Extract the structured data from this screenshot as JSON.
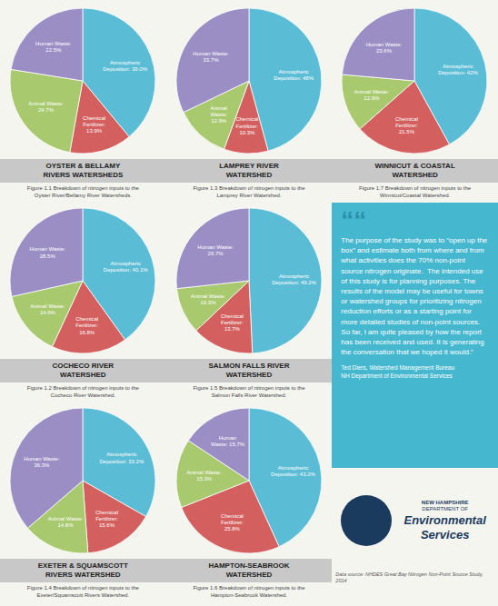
{
  "chart_data": [
    {
      "type": "pie",
      "title": "OYSTER & BELLAMY\nRIVERS WATERSHEDS",
      "annotations": [
        "Figure 1.1 Breakdown of nitrogen inputs to the\nOyster River/Bellamy River Watersheds."
      ],
      "values": [
        39.0,
        13.9,
        24.7,
        22.5
      ],
      "value_labels": [
        "Atmospheric\nDeposition: 39.0%",
        "Chemical\nFertilizer:\n13.9%",
        "Animal Waste:\n24.7%",
        "Human Waste:\n22.5%"
      ],
      "colors": [
        "#5bbcd6",
        "#d45f5f",
        "#a8c96e",
        "#9b8ec4"
      ],
      "data_labels": true
    },
    {
      "type": "pie",
      "title": "LAMPREY RIVER\nWATERSHED",
      "annotations": [
        "Figure 1.3 Breakdown of nitrogen inputs to the\nLamprey River Watershed."
      ],
      "values": [
        48.0,
        10.3,
        12.9,
        33.7
      ],
      "value_labels": [
        "Atmospheric\nDeposition: 48%",
        "Chemical\nFertilizer:\n10.3%",
        "Animal\nWaste:\n12.9%",
        "Human Waste:\n33.7%"
      ],
      "colors": [
        "#5bbcd6",
        "#d45f5f",
        "#a8c96e",
        "#9b8ec4"
      ],
      "data_labels": true
    },
    {
      "type": "pie",
      "title": "WINNICUT & COASTAL\nWATERSHED",
      "annotations": [
        "Figure 1.7 Breakdown of nitrogen inputs to the\nWinnicut/Coastal Watershed."
      ],
      "values": [
        42.0,
        21.5,
        12.9,
        23.6
      ],
      "value_labels": [
        "Atmospheric\nDeposition: 42%",
        "Chemical\nFertilizer:\n21.5%",
        "Animal Waste:\n12.9%",
        "Human Waste:\n23.6%"
      ],
      "colors": [
        "#5bbcd6",
        "#d45f5f",
        "#a8c96e",
        "#9b8ec4"
      ],
      "data_labels": true
    },
    {
      "type": "pie",
      "title": "COCHECO RIVER\nWATERSHED",
      "annotations": [
        "Figure 1.2 Breakdown of nitrogen inputs to the\nCocheco River Watershed."
      ],
      "values": [
        40.1,
        16.8,
        14.6,
        28.5
      ],
      "value_labels": [
        "Atmospheric\nDeposition: 40.1%",
        "Chemical\nFertilizer:\n16.8%",
        "Animal Waste:\n14.6%",
        "Human Waste:\n28.5%"
      ],
      "colors": [
        "#5bbcd6",
        "#d45f5f",
        "#a8c96e",
        "#9b8ec4"
      ],
      "data_labels": true
    },
    {
      "type": "pie",
      "title": "SALMON FALLS RIVER\nWATERSHED",
      "annotations": [
        "Figure 1.5 Breakdown of nitrogen inputs to the\nSalmon Falls River Watershed."
      ],
      "values": [
        49.2,
        13.7,
        10.3,
        26.7
      ],
      "value_labels": [
        "Atmospheric\nDeposition: 49.2%",
        "Chemical\nFertilizer:\n13.7%",
        "Animal Waste:\n10.3%",
        "Human Waste:\n26.7%"
      ],
      "colors": [
        "#5bbcd6",
        "#d45f5f",
        "#a8c96e",
        "#9b8ec4"
      ],
      "data_labels": true
    },
    {
      "type": "pie",
      "title": "EXETER & SQUAMSCOTT\nRIVERS WATERSHED",
      "annotations": [
        "Figure 1.4 Breakdown of nitrogen inputs to the\nExeter/Squamscott Rivers Watershed."
      ],
      "values": [
        33.2,
        15.6,
        14.8,
        36.3
      ],
      "value_labels": [
        "Atmospheric\nDeposition: 33.2%",
        "Chemical\nFertilizer:\n15.6%",
        "Animal Waste:\n14.8%",
        "Human Waste:\n36.3%"
      ],
      "colors": [
        "#5bbcd6",
        "#d45f5f",
        "#a8c96e",
        "#9b8ec4"
      ],
      "data_labels": true
    },
    {
      "type": "pie",
      "title": "HAMPTON-SEABROOK\nWATERSHED",
      "annotations": [
        "Figure 1.6 Breakdown of nitrogen inputs to the\nHampton-Seabrook Watershed."
      ],
      "values": [
        43.2,
        25.8,
        15.3,
        15.7
      ],
      "value_labels": [
        "Atmospheric\nDeposition: 43.2%",
        "Chemical\nFertilizer:\n25.8%",
        "Animal Waste:\n15.3%",
        "Human\nWaste: 15.7%"
      ],
      "colors": [
        "#5bbcd6",
        "#d45f5f",
        "#a8c96e",
        "#9b8ec4"
      ],
      "data_labels": true
    }
  ],
  "annotations": [
    "““",
    "The purpose of the study was to “open up the box” and estimate both from where and from what activities does the 70% non-point source nitrogen originate.  The intended use of this study is for planning purposes. The results of the model may be useful for towns or watershed groups for prioritizing nitrogen reduction efforts or as a starting point for more detailed studies of non-point sources.  So far, I am quite pleased by how the report has been received and used. It is generating the conversation that we hoped it would.”",
    "Ted Diers, Watershed Management Bureau\nNH Department of Environmental Services",
    "NEW HAMPSHIRE",
    "DEPARTMENT OF",
    "Environmental",
    "Services",
    "Data source: NHDES Great Bay Nitrogen Non-Point Source Study, 2014"
  ]
}
